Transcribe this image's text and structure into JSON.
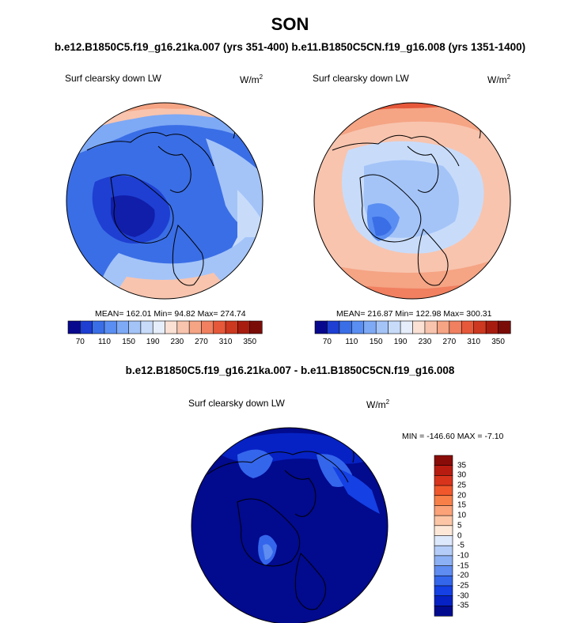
{
  "chart_data": [
    {
      "type": "heatmap",
      "projection": "north-polar-stereographic",
      "title": "SON",
      "subtitle": "b.e12.B1850C5.f19_g16.21ka.007 (yrs 351-400)",
      "variable": "Surf clearsky down LW",
      "units_base": "W/m",
      "units_exp": "2",
      "stats_text": "MEAN= 162.01  Min=  94.82  Max= 274.74",
      "mean": 162.01,
      "min": 94.82,
      "max": 274.74,
      "colorbar": {
        "orientation": "horizontal",
        "levels": [
          70,
          90,
          110,
          130,
          150,
          170,
          190,
          210,
          230,
          250,
          270,
          290,
          310,
          330,
          350
        ],
        "tick_labels": [
          "70",
          "110",
          "150",
          "190",
          "230",
          "270",
          "310",
          "350"
        ],
        "colors": [
          "#08088e",
          "#1e3fd2",
          "#3a6ee6",
          "#5a8ef2",
          "#7ea9f5",
          "#a4c4f8",
          "#c8dcfa",
          "#e6eefb",
          "#fbe0d4",
          "#f8c4ae",
          "#f5a484",
          "#f08060",
          "#e6583a",
          "#cc3820",
          "#a81c10",
          "#7a0c08"
        ]
      }
    },
    {
      "type": "heatmap",
      "projection": "north-polar-stereographic",
      "subtitle": "b.e11.B1850C5CN.f19_g16.008 (yrs 1351-1400)",
      "variable": "Surf clearsky down LW",
      "units_base": "W/m",
      "units_exp": "2",
      "stats_text": "MEAN= 216.87  Min= 122.98  Max= 300.31",
      "mean": 216.87,
      "min": 122.98,
      "max": 300.31,
      "colorbar": {
        "orientation": "horizontal",
        "levels": [
          70,
          90,
          110,
          130,
          150,
          170,
          190,
          210,
          230,
          250,
          270,
          290,
          310,
          330,
          350
        ],
        "tick_labels": [
          "70",
          "110",
          "150",
          "190",
          "230",
          "270",
          "310",
          "350"
        ]
      }
    },
    {
      "type": "heatmap",
      "projection": "north-polar-stereographic",
      "title": "b.e12.B1850C5.f19_g16.21ka.007 - b.e11.B1850C5CN.f19_g16.008",
      "variable": "Surf clearsky down LW",
      "units_base": "W/m",
      "units_exp": "2",
      "stats_text": "MIN = -146.60 MAX =  -7.10",
      "min": -146.6,
      "max": -7.1,
      "colorbar": {
        "orientation": "vertical",
        "levels": [
          -35,
          -30,
          -25,
          -20,
          -15,
          -10,
          -5,
          0,
          5,
          10,
          15,
          20,
          25,
          30,
          35
        ],
        "tick_labels": [
          "35",
          "30",
          "25",
          "20",
          "15",
          "10",
          "5",
          "0",
          "-5",
          "-10",
          "-15",
          "-20",
          "-25",
          "-30",
          "-35"
        ],
        "colors_top_to_bottom": [
          "#8a0c08",
          "#b81c10",
          "#d8341c",
          "#f0582c",
          "#f88048",
          "#fba278",
          "#fcc6a6",
          "#fde8d8",
          "#dce8fb",
          "#b4cdf8",
          "#8cb0f4",
          "#5e8cf0",
          "#3466ec",
          "#1440e4",
          "#0622c4",
          "#020a8e"
        ]
      }
    }
  ]
}
